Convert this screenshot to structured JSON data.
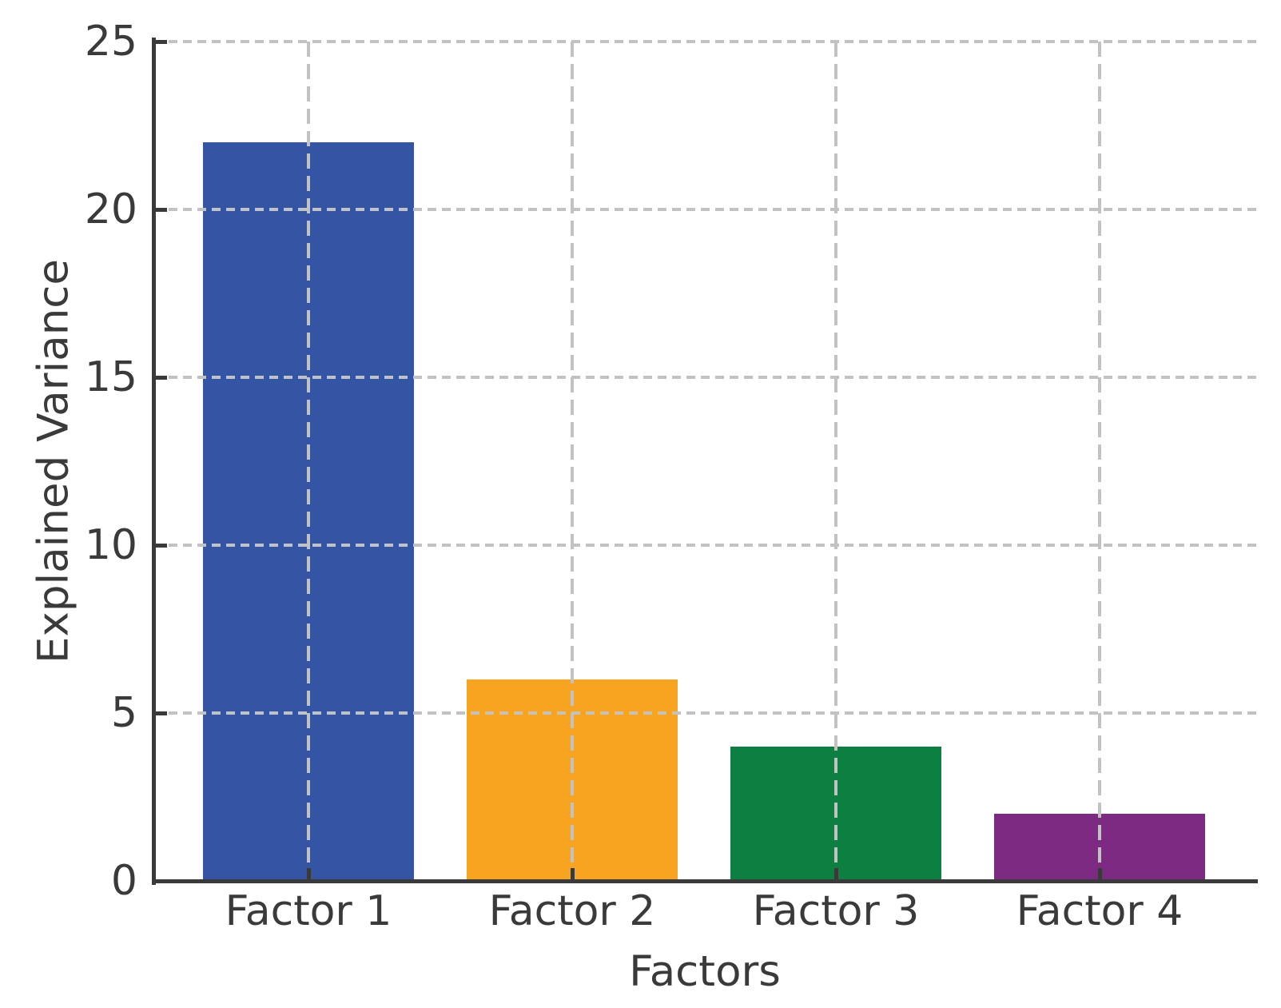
{
  "figure": {
    "background": "#FFFFFF"
  },
  "chart_data": {
    "type": "bar",
    "title": "",
    "categories": [
      "Factor 1",
      "Factor 2",
      "Factor 3",
      "Factor 4"
    ],
    "values": [
      22,
      6,
      4,
      2
    ],
    "bar_colors": [
      "#3454A4",
      "#F7A521",
      "#0C8040",
      "#7D2A82"
    ],
    "xlabel": "Factors",
    "ylabel": "Explained Variance",
    "ylim": [
      0,
      25
    ],
    "yticks": [
      0,
      5,
      10,
      15,
      20,
      25
    ],
    "grid": "both",
    "grid_line_style": "dashed",
    "legend": false,
    "tick_direction": "in",
    "axis_color": "#3A3A3A",
    "grid_color": "#C2C2C2"
  }
}
